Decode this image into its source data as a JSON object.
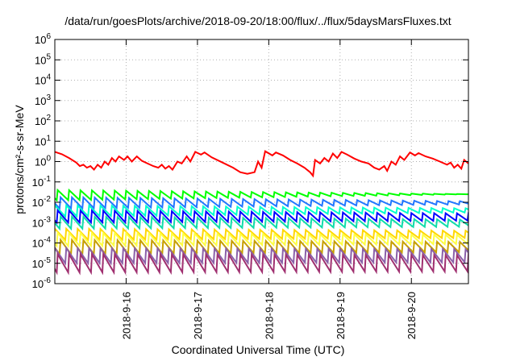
{
  "chart_data": {
    "type": "line",
    "title": "/data/run/goesPlots/archive/2018-09-20/18:00/flux/../flux/5daysMarsFluxes.txt",
    "xlabel": "Coordinated Universal Time (UTC)",
    "ylabel": "protons/cm²-s-sr-MeV",
    "yscale": "log",
    "ylim": [
      1e-06,
      1000000.0
    ],
    "xlim": [
      0,
      5.8
    ],
    "grid": true,
    "y_tick_labels": [
      {
        "base": "10",
        "exp": "-6"
      },
      {
        "base": "10",
        "exp": "-5"
      },
      {
        "base": "10",
        "exp": "-4"
      },
      {
        "base": "10",
        "exp": "-3"
      },
      {
        "base": "10",
        "exp": "-2"
      },
      {
        "base": "10",
        "exp": "-1"
      },
      {
        "base": "10",
        "exp": "0"
      },
      {
        "base": "10",
        "exp": "1"
      },
      {
        "base": "10",
        "exp": "2"
      },
      {
        "base": "10",
        "exp": "3"
      },
      {
        "base": "10",
        "exp": "4"
      },
      {
        "base": "10",
        "exp": "5"
      },
      {
        "base": "10",
        "exp": "6"
      }
    ],
    "x_ticks": [
      {
        "label": "2018-9-16",
        "x": 1
      },
      {
        "label": "2018-9-17",
        "x": 2
      },
      {
        "label": "2018-9-18",
        "x": 3
      },
      {
        "label": "2018-9-19",
        "x": 4
      },
      {
        "label": "2018-9-20",
        "x": 5
      }
    ],
    "sawtooth_period": 0.16,
    "series": [
      {
        "color": "#ff0000",
        "high": [
          0.0,
          0.5
        ],
        "low": [
          -0.4,
          0.2
        ],
        "points": [
          [
            0.0,
            3.0
          ],
          [
            0.1,
            2.3
          ],
          [
            0.2,
            1.5
          ],
          [
            0.3,
            0.9
          ],
          [
            0.35,
            0.6
          ],
          [
            0.4,
            0.7
          ],
          [
            0.45,
            0.5
          ],
          [
            0.5,
            0.6
          ],
          [
            0.55,
            0.4
          ],
          [
            0.6,
            0.7
          ],
          [
            0.65,
            0.5
          ],
          [
            0.7,
            1.0
          ],
          [
            0.75,
            0.7
          ],
          [
            0.8,
            1.5
          ],
          [
            0.85,
            1.0
          ],
          [
            0.9,
            1.8
          ],
          [
            0.97,
            1.2
          ],
          [
            1.02,
            1.8
          ],
          [
            1.08,
            1.0
          ],
          [
            1.15,
            1.8
          ],
          [
            1.22,
            1.1
          ],
          [
            1.3,
            0.8
          ],
          [
            1.38,
            0.6
          ],
          [
            1.45,
            0.5
          ],
          [
            1.5,
            0.7
          ],
          [
            1.55,
            0.45
          ],
          [
            1.6,
            0.6
          ],
          [
            1.65,
            0.4
          ],
          [
            1.72,
            1.0
          ],
          [
            1.78,
            0.8
          ],
          [
            1.85,
            1.8
          ],
          [
            1.9,
            1.0
          ],
          [
            1.97,
            3.0
          ],
          [
            2.05,
            2.2
          ],
          [
            2.1,
            2.8
          ],
          [
            2.2,
            1.6
          ],
          [
            2.35,
            0.9
          ],
          [
            2.5,
            0.5
          ],
          [
            2.6,
            0.3
          ],
          [
            2.7,
            0.25
          ],
          [
            2.8,
            0.3
          ],
          [
            2.85,
            1.0
          ],
          [
            2.9,
            0.5
          ],
          [
            2.95,
            3.2
          ],
          [
            3.05,
            2.0
          ],
          [
            3.1,
            2.8
          ],
          [
            3.2,
            2.0
          ],
          [
            3.3,
            1.2
          ],
          [
            3.4,
            0.8
          ],
          [
            3.5,
            0.5
          ],
          [
            3.58,
            0.3
          ],
          [
            3.62,
            0.2
          ],
          [
            3.65,
            1.2
          ],
          [
            3.72,
            0.8
          ],
          [
            3.78,
            1.5
          ],
          [
            3.84,
            1.0
          ],
          [
            3.9,
            2.5
          ],
          [
            3.96,
            1.5
          ],
          [
            4.02,
            3.0
          ],
          [
            4.1,
            2.2
          ],
          [
            4.2,
            1.4
          ],
          [
            4.3,
            1.0
          ],
          [
            4.4,
            0.8
          ],
          [
            4.48,
            0.5
          ],
          [
            4.55,
            0.4
          ],
          [
            4.62,
            0.6
          ],
          [
            4.66,
            0.35
          ],
          [
            4.72,
            1.0
          ],
          [
            4.78,
            0.7
          ],
          [
            4.84,
            1.8
          ],
          [
            4.9,
            1.2
          ],
          [
            4.98,
            2.8
          ],
          [
            5.05,
            2.0
          ],
          [
            5.1,
            2.6
          ],
          [
            5.2,
            1.8
          ],
          [
            5.3,
            1.4
          ],
          [
            5.4,
            1.0
          ],
          [
            5.5,
            0.7
          ],
          [
            5.55,
            0.9
          ],
          [
            5.6,
            0.5
          ],
          [
            5.65,
            0.7
          ],
          [
            5.7,
            0.45
          ],
          [
            5.74,
            1.2
          ],
          [
            5.8,
            0.8
          ]
        ]
      },
      {
        "color": "#00ff00",
        "high": [
          -1.4,
          -1.6
        ],
        "low": [
          -1.9,
          -1.6
        ]
      },
      {
        "color": "#2277ff",
        "high": [
          -1.75,
          -1.95
        ],
        "low": [
          -2.3,
          -2.1
        ]
      },
      {
        "color": "#00ffcc",
        "high": [
          -2.15,
          -2.3
        ],
        "low": [
          -2.7,
          -2.5
        ]
      },
      {
        "color": "#0000ff",
        "high": [
          -2.4,
          -2.55
        ],
        "low": [
          -3.0,
          -2.9
        ]
      },
      {
        "color": "#11ddaa",
        "high": [
          -2.7,
          -2.85
        ],
        "low": [
          -3.3,
          -3.2
        ]
      },
      {
        "color": "#ffd700",
        "high": [
          -3.3,
          -3.4
        ],
        "low": [
          -3.85,
          -3.75
        ]
      },
      {
        "color": "#ffff44",
        "high": [
          -3.5,
          -3.6
        ],
        "low": [
          -4.15,
          -4.05
        ]
      },
      {
        "color": "#c8a000",
        "high": [
          -3.85,
          -3.95
        ],
        "low": [
          -4.55,
          -4.45
        ]
      },
      {
        "color": "#8a60a8",
        "high": [
          -4.25,
          -4.3
        ],
        "low": [
          -5.0,
          -4.95
        ]
      },
      {
        "color": "#a03070",
        "high": [
          -4.55,
          -4.6
        ],
        "low": [
          -5.45,
          -5.4
        ]
      }
    ]
  }
}
